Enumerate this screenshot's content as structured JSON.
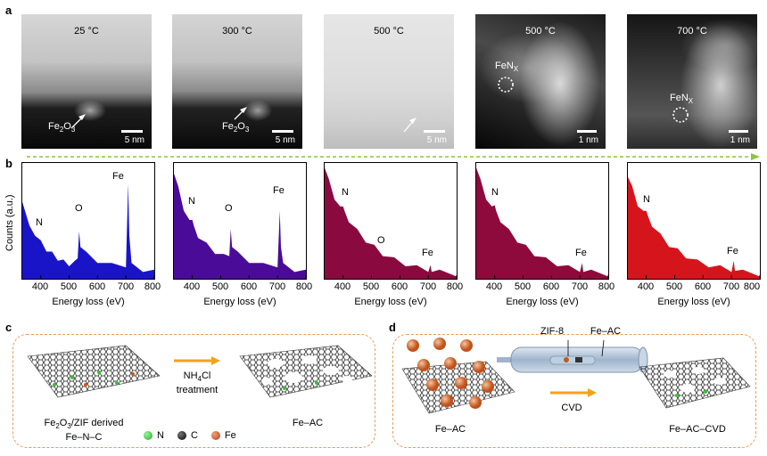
{
  "panel_letters": {
    "a": "a",
    "b": "b",
    "c": "c",
    "d": "d"
  },
  "micrographs": [
    {
      "temperature": "25 °C",
      "annotation": "Fe",
      "annotation_sub": "2",
      "annotation_tail": "O",
      "annotation_sub2": "3",
      "scale": "5 nm"
    },
    {
      "temperature": "300 °C",
      "annotation": "Fe",
      "annotation_sub": "2",
      "annotation_tail": "O",
      "annotation_sub2": "3",
      "scale": "5 nm"
    },
    {
      "temperature": "500 °C",
      "scale": "5 nm"
    },
    {
      "temperature": "500 °C",
      "annotation": "FeN",
      "annotation_sub": "X",
      "scale": "1 nm"
    },
    {
      "temperature": "700 °C",
      "annotation": "FeN",
      "annotation_sub": "X",
      "scale": "1 nm"
    }
  ],
  "eels_common": {
    "ylabel": "Counts (a.u.)",
    "xlabel": "Energy loss (eV)",
    "xticks": [
      "400",
      "500",
      "600",
      "700",
      "800"
    ]
  },
  "chart_data": [
    {
      "type": "line",
      "color": "#1a14c8",
      "xlim": [
        335,
        800
      ],
      "edges": [
        "N",
        "O",
        "Fe"
      ],
      "x": [
        335,
        360,
        380,
        400,
        420,
        440,
        460,
        480,
        500,
        520,
        530,
        535,
        540,
        560,
        600,
        650,
        700,
        708,
        712,
        720,
        760,
        800
      ],
      "y": [
        0.7,
        0.45,
        0.4,
        0.32,
        0.26,
        0.22,
        0.18,
        0.15,
        0.13,
        0.14,
        0.2,
        0.4,
        0.3,
        0.22,
        0.16,
        0.12,
        0.12,
        0.82,
        0.4,
        0.12,
        0.08,
        0.06
      ]
    },
    {
      "type": "line",
      "color": "#4a0c98",
      "xlim": [
        335,
        800
      ],
      "edges": [
        "N",
        "O",
        "Fe"
      ],
      "x": [
        335,
        350,
        370,
        390,
        400,
        405,
        420,
        450,
        480,
        510,
        530,
        535,
        540,
        560,
        600,
        650,
        700,
        708,
        712,
        720,
        760,
        800
      ],
      "y": [
        0.95,
        0.8,
        0.62,
        0.5,
        0.54,
        0.45,
        0.38,
        0.3,
        0.24,
        0.2,
        0.22,
        0.42,
        0.3,
        0.22,
        0.16,
        0.12,
        0.12,
        0.58,
        0.3,
        0.12,
        0.08,
        0.06
      ]
    },
    {
      "type": "line",
      "color": "#8a0a3f",
      "xlim": [
        335,
        800
      ],
      "edges": [
        "N",
        "O",
        "Fe"
      ],
      "x": [
        335,
        350,
        370,
        390,
        400,
        405,
        420,
        450,
        480,
        510,
        540,
        580,
        620,
        660,
        700,
        708,
        712,
        740,
        800
      ],
      "y": [
        1.0,
        0.86,
        0.72,
        0.62,
        0.66,
        0.58,
        0.52,
        0.42,
        0.34,
        0.28,
        0.22,
        0.17,
        0.13,
        0.1,
        0.08,
        0.1,
        0.08,
        0.06,
        0.04
      ]
    },
    {
      "type": "line",
      "color": "#8f0a3c",
      "xlim": [
        335,
        800
      ],
      "edges": [
        "N",
        "Fe"
      ],
      "x": [
        335,
        350,
        370,
        390,
        400,
        405,
        420,
        450,
        480,
        510,
        540,
        580,
        620,
        660,
        700,
        708,
        712,
        740,
        800
      ],
      "y": [
        1.0,
        0.86,
        0.72,
        0.62,
        0.67,
        0.58,
        0.52,
        0.42,
        0.34,
        0.28,
        0.22,
        0.17,
        0.13,
        0.1,
        0.08,
        0.12,
        0.08,
        0.06,
        0.04
      ]
    },
    {
      "type": "line",
      "color": "#d6141c",
      "xlim": [
        335,
        800
      ],
      "edges": [
        "N",
        "Fe"
      ],
      "x": [
        335,
        350,
        370,
        390,
        400,
        405,
        420,
        450,
        480,
        510,
        540,
        580,
        620,
        660,
        700,
        708,
        712,
        740,
        800
      ],
      "y": [
        0.92,
        0.8,
        0.66,
        0.58,
        0.62,
        0.54,
        0.48,
        0.38,
        0.3,
        0.25,
        0.2,
        0.15,
        0.12,
        0.1,
        0.08,
        0.14,
        0.09,
        0.06,
        0.04
      ]
    }
  ],
  "scheme_c": {
    "left_caption_1": "Fe",
    "left_caption_sub1": "2",
    "left_caption_mid": "O",
    "left_caption_sub2": "3",
    "left_caption_tail": "/ZIF derived",
    "left_caption_2": "Fe–N–C",
    "treatment_1": "NH",
    "treatment_sub": "4",
    "treatment_tail": "Cl",
    "treatment_2": "treatment",
    "right_caption": "Fe–AC",
    "legend": [
      "N",
      "C",
      "Fe"
    ]
  },
  "scheme_d": {
    "left_caption": "Fe–AC",
    "tube_label_1": "ZIF-8",
    "tube_label_2": "Fe–AC",
    "process": "CVD",
    "right_caption": "Fe–AC–CVD"
  },
  "colors": {
    "nitrogen": "#2ec82e",
    "carbon": "#111111",
    "iron": "#d2561a",
    "arrow_orange": "#f3a21b",
    "dashed_green": "#8cc63f",
    "box_border": "#e99a57"
  }
}
